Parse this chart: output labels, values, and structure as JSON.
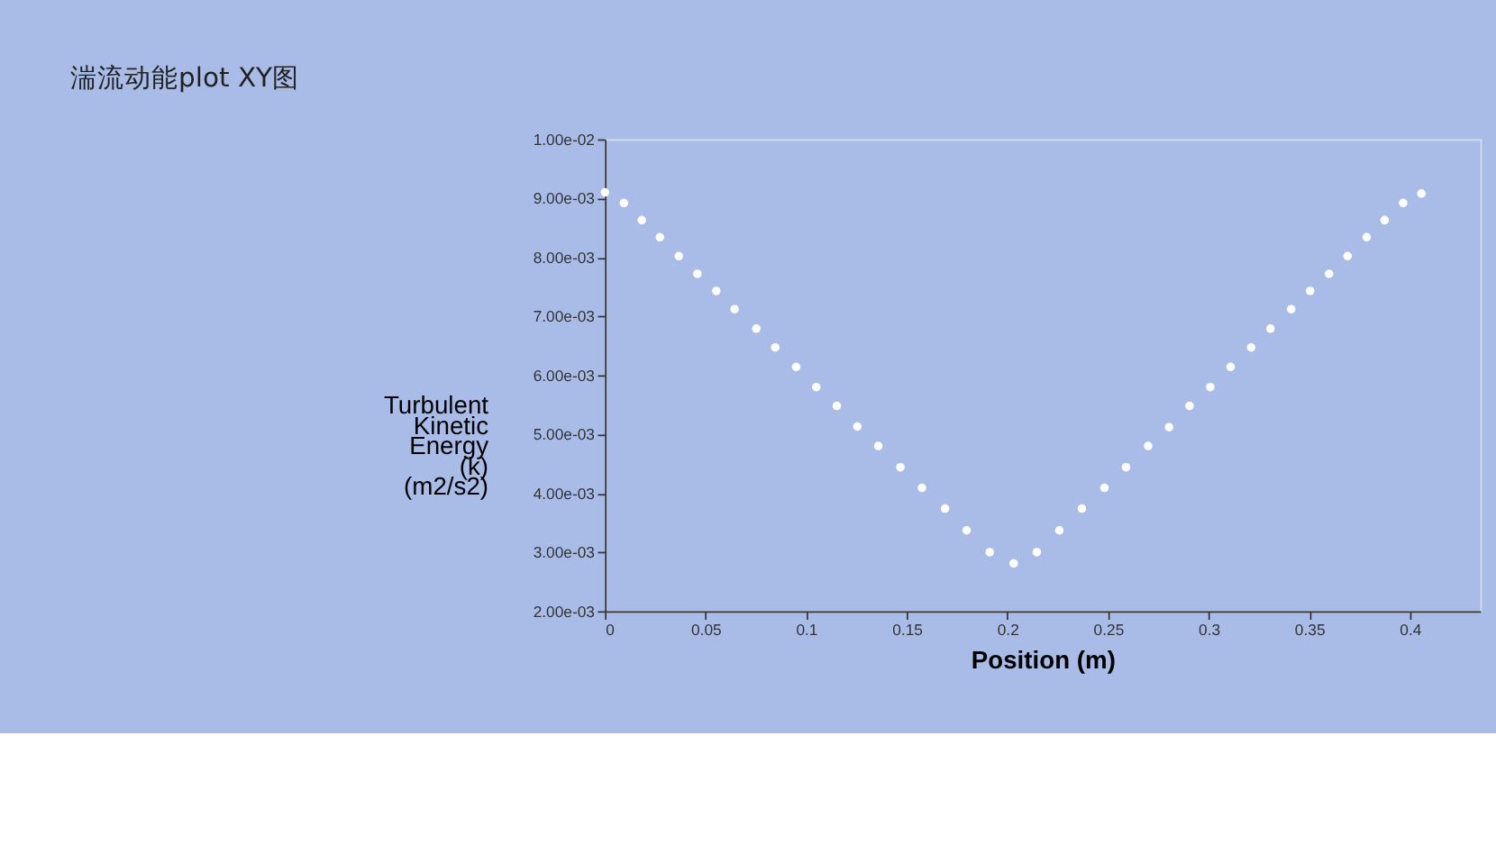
{
  "chart_data": {
    "type": "scatter",
    "title": "湍流动能plot XY图",
    "xlabel": "Position (m)",
    "ylabel": "Turbulent Kinetic Energy (k) (m2/s2)",
    "x": [
      0,
      0.0094,
      0.0183,
      0.0273,
      0.0367,
      0.0459,
      0.0553,
      0.0644,
      0.0752,
      0.0846,
      0.095,
      0.105,
      0.1152,
      0.1254,
      0.1358,
      0.1468,
      0.1575,
      0.169,
      0.1797,
      0.1912,
      0.2031,
      0.2146,
      0.2258,
      0.237,
      0.2482,
      0.2589,
      0.2699,
      0.2803,
      0.2905,
      0.3008,
      0.3109,
      0.3211,
      0.3307,
      0.341,
      0.3504,
      0.3598,
      0.369,
      0.3785,
      0.3874,
      0.3966,
      0.4057
    ],
    "series": [
      {
        "color": "#ffffff",
        "values": [
          0.0091,
          0.00892,
          0.00863,
          0.00834,
          0.00802,
          0.00772,
          0.00743,
          0.00712,
          0.00679,
          0.00647,
          0.00614,
          0.0058,
          0.00548,
          0.00513,
          0.0048,
          0.00444,
          0.00409,
          0.00374,
          0.00337,
          0.003,
          0.00281,
          0.003,
          0.00337,
          0.00374,
          0.00409,
          0.00444,
          0.0048,
          0.00512,
          0.00548,
          0.0058,
          0.00614,
          0.00647,
          0.00679,
          0.00712,
          0.00743,
          0.00772,
          0.00802,
          0.00834,
          0.00863,
          0.00892,
          0.00908
        ]
      }
    ],
    "xlim": [
      0,
      0.435
    ],
    "xticks": [
      0,
      0.05,
      0.1,
      0.15,
      0.2,
      0.25,
      0.3,
      0.35,
      0.4
    ],
    "ylim": [
      0.002,
      0.01
    ],
    "yticks": [
      {
        "value": 0.002,
        "label": "2.00e-03"
      },
      {
        "value": 0.003,
        "label": "3.00e-03"
      },
      {
        "value": 0.004,
        "label": "4.00e-03"
      },
      {
        "value": 0.005,
        "label": "5.00e-03"
      },
      {
        "value": 0.006,
        "label": "6.00e-03"
      },
      {
        "value": 0.007,
        "label": "7.00e-03"
      },
      {
        "value": 0.008,
        "label": "8.00e-03"
      },
      {
        "value": 0.009,
        "label": "9.00e-03"
      },
      {
        "value": 0.01,
        "label": "1.00e-02"
      }
    ],
    "grid": false,
    "legend": false,
    "marker": "circle"
  }
}
